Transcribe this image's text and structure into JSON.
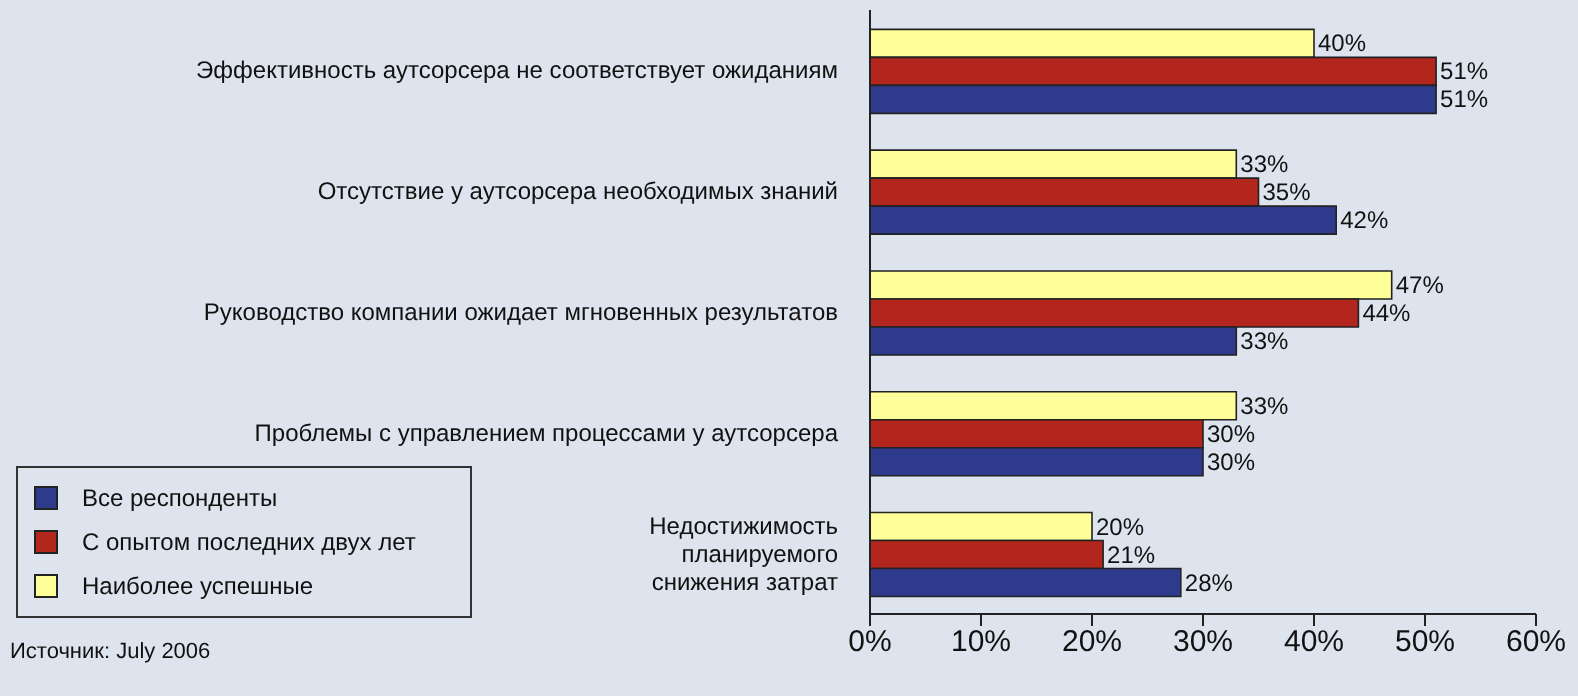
{
  "chart_data": {
    "type": "bar",
    "orientation": "horizontal",
    "categories": [
      "Эффективность аутсорсера не соответствует ожиданиям",
      "Отсутствие у аутсорсера необходимых знаний",
      "Руководство компании ожидает мгновенных результатов",
      "Проблемы с управлением процессами у аутсорсера",
      "Недостижимость\nпланируемого\nснижения затрат"
    ],
    "series": [
      {
        "name": "Все респонденты",
        "color": "#2e3a8c",
        "values": [
          51,
          42,
          33,
          30,
          28
        ],
        "value_labels": [
          "51%",
          "42%",
          "33%",
          "30%",
          "28%"
        ]
      },
      {
        "name": "С опытом последних двух лет",
        "color": "#b3261e",
        "values": [
          51,
          35,
          44,
          30,
          21
        ],
        "value_labels": [
          "51%",
          "35%",
          "44%",
          "30%",
          "21%"
        ]
      },
      {
        "name": "Наиболее успешные",
        "color": "#ffff99",
        "values": [
          40,
          33,
          47,
          33,
          20
        ],
        "value_labels": [
          "40%",
          "33%",
          "47%",
          "33%",
          "20%"
        ]
      }
    ],
    "xlim": [
      0,
      60
    ],
    "xticks": [
      {
        "value": 0,
        "label": "0%"
      },
      {
        "value": 10,
        "label": "10%"
      },
      {
        "value": 20,
        "label": "20%"
      },
      {
        "value": 30,
        "label": "30%"
      },
      {
        "value": 40,
        "label": "40%"
      },
      {
        "value": 50,
        "label": "50%"
      },
      {
        "value": 60,
        "label": "60%"
      }
    ],
    "legend": "bottom left",
    "grid": false,
    "annotations": [
      "Источник: July 2006"
    ]
  }
}
